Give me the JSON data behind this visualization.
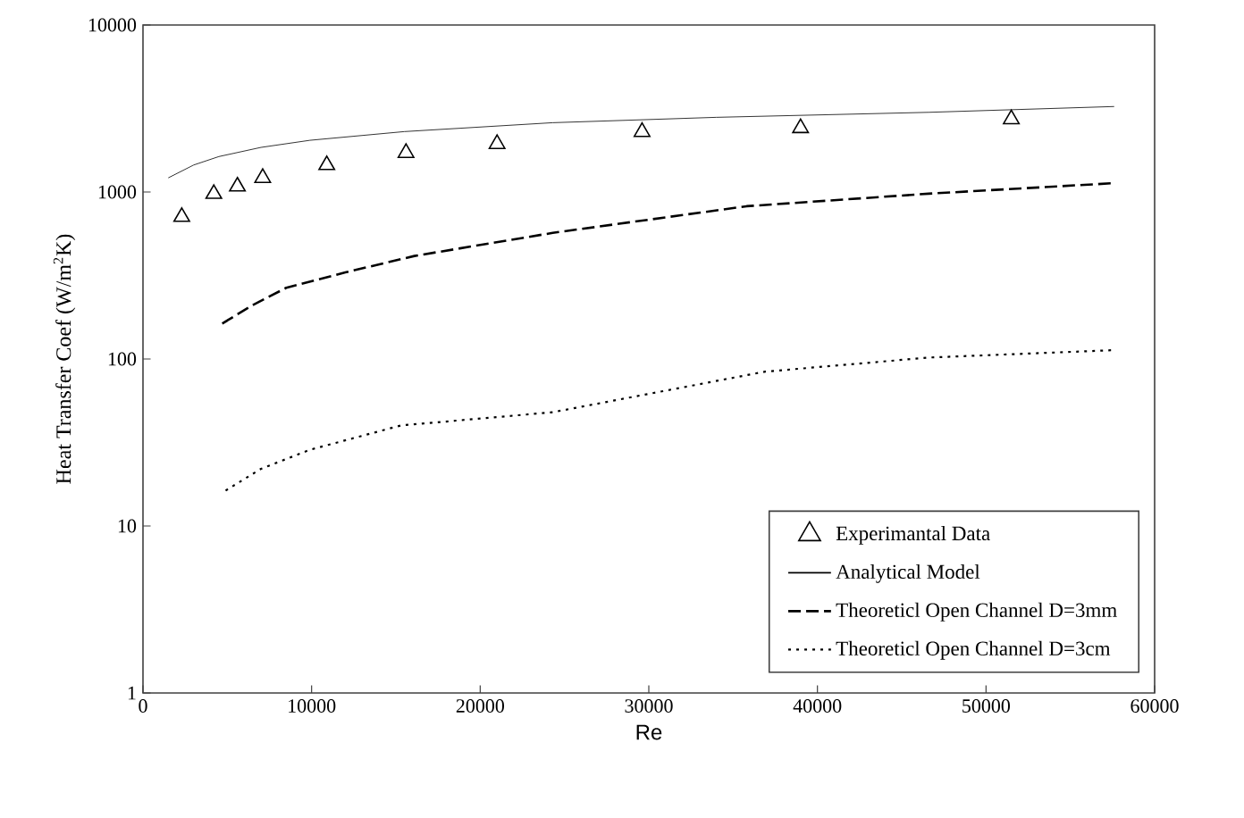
{
  "chart_data": {
    "type": "line",
    "xlabel": "Re",
    "ylabel": "Heat Transfer Coef (W/m$^{2}$K)",
    "xlim": [
      0,
      60000
    ],
    "xticks": [
      0,
      10000,
      20000,
      30000,
      40000,
      50000,
      60000
    ],
    "ylim": [
      1,
      10000
    ],
    "yticks": [
      1,
      10,
      100,
      1000,
      10000
    ],
    "log": "y",
    "grid": false,
    "legend": "bottom right",
    "series": [
      {
        "name": "Experimantal Data",
        "type": "scatter",
        "marker": "triangle",
        "color": "#000000",
        "x": [
          2300,
          4200,
          5600,
          7100,
          10900,
          15600,
          21000,
          29600,
          39000,
          51500
        ],
        "values": [
          710,
          975,
          1080,
          1215,
          1450,
          1715,
          1940,
          2290,
          2415,
          2730
        ]
      },
      {
        "name": "Analytical Model",
        "line_style": "solid",
        "color": "#000000",
        "x": [
          1500,
          3000,
          4500,
          7000,
          9900,
          15500,
          24300,
          34000,
          46600,
          57600
        ],
        "values": [
          1215,
          1450,
          1630,
          1850,
          2040,
          2300,
          2600,
          2800,
          3000,
          3250
        ]
      },
      {
        "name": "Theoreticl Open Channel D=3mm",
        "line_style": "dashed",
        "color": "#000000",
        "x": [
          4700,
          6500,
          8500,
          12000,
          16100,
          24300,
          35800,
          46600,
          57600
        ],
        "values": [
          163,
          210,
          267,
          330,
          414,
          569,
          822,
          977,
          1130
        ]
      },
      {
        "name": "Theoreticl Open Channel D=3cm",
        "line_style": "dotted",
        "color": "#000000",
        "x": [
          4900,
          7000,
          9900,
          15300,
          24300,
          36900,
          46600,
          57600
        ],
        "values": [
          16.3,
          22,
          28.6,
          40,
          48,
          84,
          102,
          113
        ]
      }
    ]
  }
}
